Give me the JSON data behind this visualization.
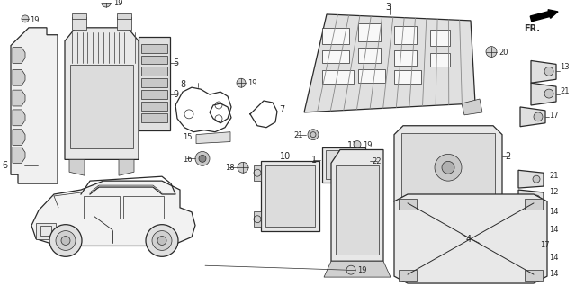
{
  "bg_color": "#ffffff",
  "fig_width": 6.4,
  "fig_height": 3.18,
  "dpi": 100,
  "line_color": "#2a2a2a",
  "gray_fill": "#c8c8c8",
  "light_gray": "#e0e0e0",
  "dark_gray": "#888888"
}
